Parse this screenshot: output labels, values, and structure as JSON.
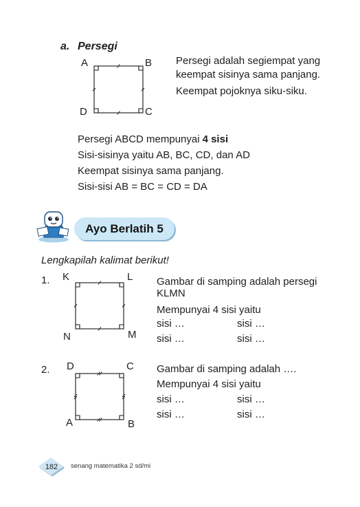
{
  "section_a": {
    "letter": "a.",
    "title": "Persegi",
    "figure": {
      "top_left": "A",
      "top_right": "B",
      "bottom_left": "D",
      "bottom_right": "C"
    },
    "definition": {
      "line1": "Persegi adalah segiempat yang",
      "line2": "keempat sisinya sama panjang.",
      "line3": "Keempat pojoknya siku-siku."
    },
    "properties": {
      "line1_prefix": "Persegi ABCD mempunyai",
      "line1_bold": "4 sisi",
      "line2": "Sisi-sisinya yaitu AB, BC, CD, dan AD",
      "line3": "Keempat sisinya sama panjang.",
      "line4": "Sisi-sisi AB = BC = CD = DA"
    }
  },
  "exercise": {
    "title": "Ayo Berlatih 5",
    "instruction": "Lengkapilah kalimat berikut!",
    "items": [
      {
        "number": "1.",
        "figure": {
          "top_left": "K",
          "top_right": "L",
          "bottom_left": "N",
          "bottom_right": "M"
        },
        "statement_line1": "Gambar di samping adalah persegi",
        "statement_line2": "KLMN",
        "sides_prompt": "Mempunyai 4 sisi yaitu",
        "blanks": [
          "sisi …",
          "sisi …",
          "sisi …",
          "sisi …"
        ]
      },
      {
        "number": "2.",
        "figure": {
          "top_left": "D",
          "top_right": "C",
          "bottom_left": "A",
          "bottom_right": "B"
        },
        "statement_line1": "Gambar di samping adalah ….",
        "sides_prompt": "Mempunyai 4 sisi yaitu",
        "blanks": [
          "sisi …",
          "sisi …",
          "sisi …",
          "sisi …"
        ]
      }
    ]
  },
  "colors": {
    "badge_fill": "#cce8f6",
    "badge_shadow": "#8ab8d4",
    "mascot_blue": "#2f7fc1"
  },
  "footer": {
    "page_number": "182",
    "book_title": "senang matematika 2 sd/mi"
  }
}
